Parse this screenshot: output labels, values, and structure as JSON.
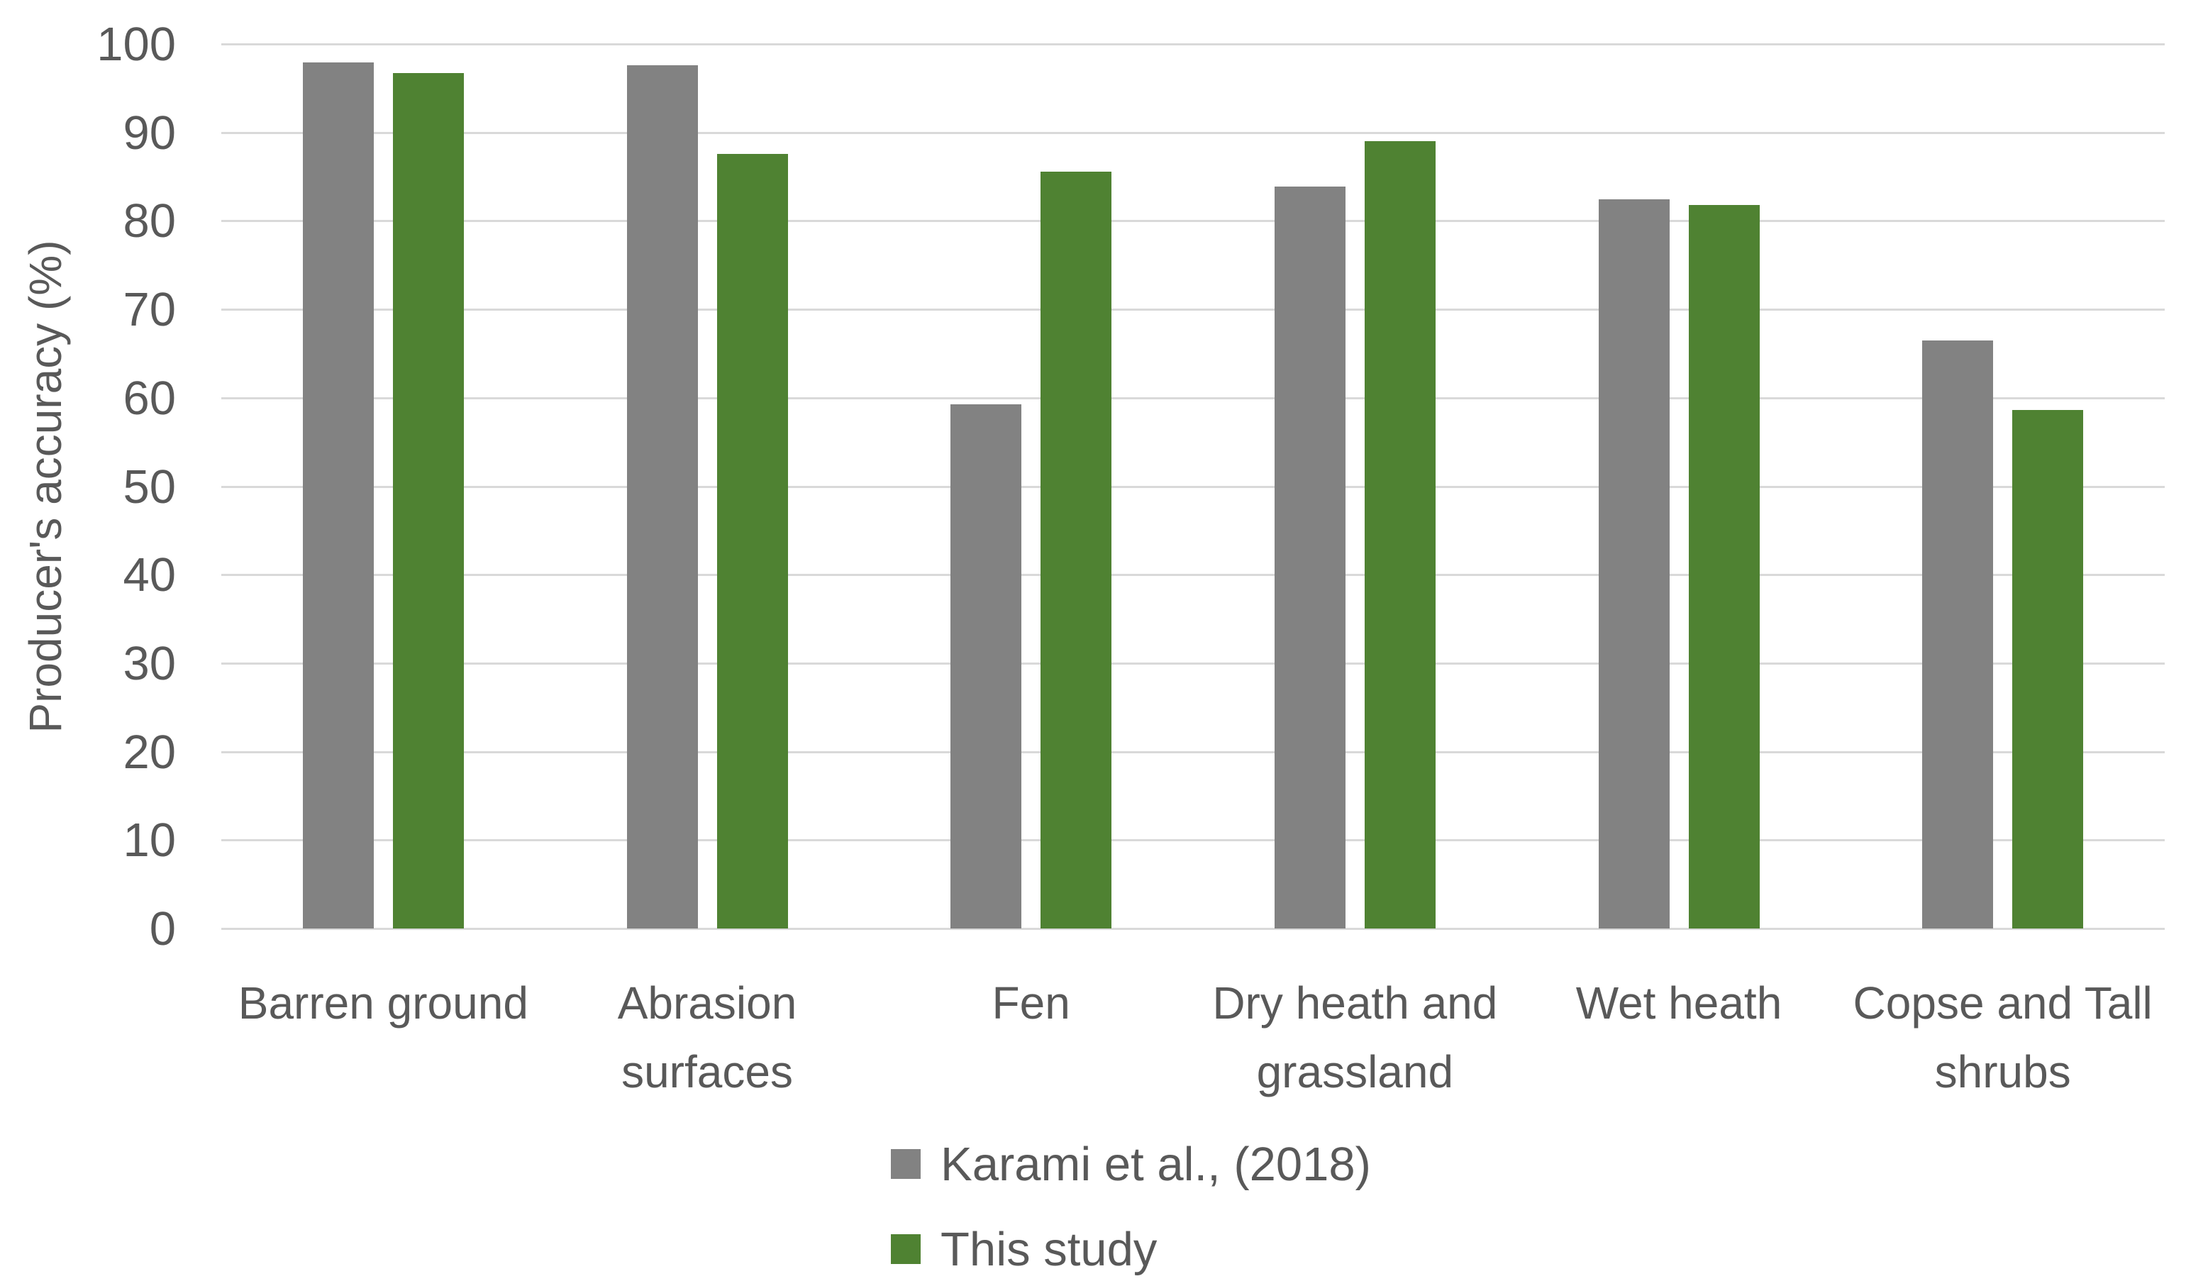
{
  "chart_data": {
    "type": "bar",
    "title": "",
    "xlabel": "",
    "ylabel": "Producer's accuracy (%)",
    "ylim": [
      0,
      100
    ],
    "ytick_step": 10,
    "grid": true,
    "legend_position": "bottom-left-of-center",
    "categories": [
      "Barren ground",
      "Abrasion surfaces",
      "Fen",
      "Dry heath and grassland",
      "Wet heath",
      "Copse and Tall shrubs"
    ],
    "series": [
      {
        "name": "Karami et al., (2018)",
        "color": "#828282",
        "values": [
          97.9,
          97.6,
          59.3,
          83.9,
          82.4,
          66.5
        ]
      },
      {
        "name": "This study",
        "color": "#4F8232",
        "values": [
          96.7,
          87.6,
          85.6,
          89.0,
          81.8,
          58.6
        ]
      }
    ]
  },
  "colors": {
    "gridline": "#d9d9d9",
    "axis_text": "#595959",
    "background": "#ffffff"
  }
}
